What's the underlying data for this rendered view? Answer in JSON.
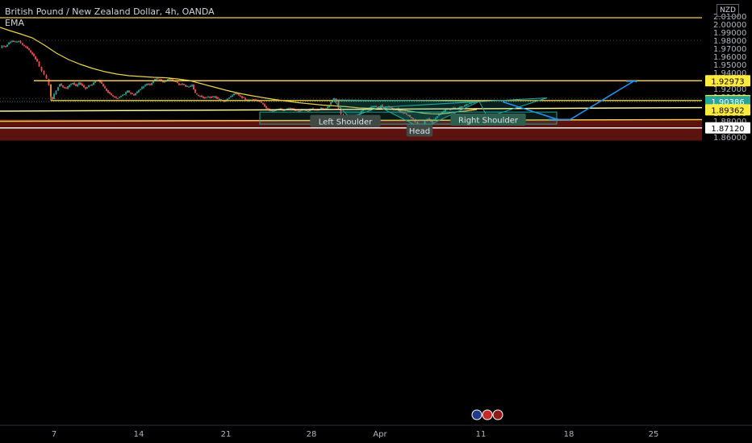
{
  "header": {
    "title": "British Pound / New Zealand Dollar, 4h, OANDA",
    "indicator": "EMA",
    "currency": "NZD"
  },
  "colors": {
    "background": "#000000",
    "candle_up": "#26a69a",
    "candle_down": "#ef5350",
    "ema": "#e8d44d",
    "level_line": "#f2c94c",
    "support_line": "#fff59d",
    "projection_arrow": "#2196f3",
    "pattern_fill": "#26a69a",
    "support_zone": "#6b1612",
    "axis_text": "#b2b5be",
    "price_label_yellow": "#ffeb3b",
    "price_label_green": "#26a69a",
    "price_label_white": "#ffffff"
  },
  "chart_data": {
    "type": "candlestick",
    "symbol": "GBP/NZD",
    "interval": "4h",
    "x_ticks": [
      "7",
      "14",
      "21",
      "28",
      "Apr",
      "11",
      "18",
      "25"
    ],
    "y_ticks": [
      "2.01000",
      "2.00000",
      "1.99000",
      "1.98000",
      "1.97000",
      "1.96000",
      "1.95000",
      "1.94000",
      "1.93000",
      "1.92000",
      "1.91000",
      "1.90000",
      "1.89000",
      "1.88000",
      "1.87000",
      "1.86000"
    ],
    "ylim": [
      1.8555,
      2.0135
    ],
    "grid": false,
    "price_path": [
      [
        1,
        1.9705
      ],
      [
        4,
        1.9735
      ],
      [
        8,
        1.972
      ],
      [
        12,
        1.9775
      ],
      [
        16,
        1.979
      ],
      [
        20,
        1.978
      ],
      [
        24,
        1.9795
      ],
      [
        27,
        1.976
      ],
      [
        31,
        1.973
      ],
      [
        35,
        1.97
      ],
      [
        39,
        1.965
      ],
      [
        43,
        1.96
      ],
      [
        47,
        1.954
      ],
      [
        50,
        1.947
      ],
      [
        53,
        1.942
      ],
      [
        56,
        1.937
      ],
      [
        59,
        1.932
      ],
      [
        62,
        1.925
      ],
      [
        64,
        1.91
      ],
      [
        66,
        1.907
      ],
      [
        68,
        1.913
      ],
      [
        71,
        1.918
      ],
      [
        75,
        1.926
      ],
      [
        79,
        1.922
      ],
      [
        83,
        1.92
      ],
      [
        87,
        1.925
      ],
      [
        91,
        1.927
      ],
      [
        95,
        1.923
      ],
      [
        99,
        1.927
      ],
      [
        103,
        1.924
      ],
      [
        107,
        1.92
      ],
      [
        111,
        1.924
      ],
      [
        115,
        1.925
      ],
      [
        119,
        1.929
      ],
      [
        123,
        1.931
      ],
      [
        127,
        1.926
      ],
      [
        131,
        1.92
      ],
      [
        135,
        1.915
      ],
      [
        139,
        1.912
      ],
      [
        143,
        1.909
      ],
      [
        147,
        1.908
      ],
      [
        151,
        1.911
      ],
      [
        155,
        1.913
      ],
      [
        159,
        1.917
      ],
      [
        163,
        1.914
      ],
      [
        167,
        1.912
      ],
      [
        171,
        1.916
      ],
      [
        175,
        1.92
      ],
      [
        179,
        1.923
      ],
      [
        183,
        1.926
      ],
      [
        187,
        1.925
      ],
      [
        191,
        1.93
      ],
      [
        195,
        1.933
      ],
      [
        199,
        1.931
      ],
      [
        203,
        1.928
      ],
      [
        207,
        1.93
      ],
      [
        211,
        1.933
      ],
      [
        215,
        1.93
      ],
      [
        219,
        1.928
      ],
      [
        223,
        1.925
      ],
      [
        227,
        1.926
      ],
      [
        231,
        1.923
      ],
      [
        235,
        1.922
      ],
      [
        239,
        1.925
      ],
      [
        243,
        1.914
      ],
      [
        247,
        1.911
      ],
      [
        251,
        1.91
      ],
      [
        255,
        1.908
      ],
      [
        259,
        1.91
      ],
      [
        263,
        1.909
      ],
      [
        267,
        1.91
      ],
      [
        271,
        1.907
      ],
      [
        275,
        1.906
      ],
      [
        279,
        1.904
      ],
      [
        283,
        1.908
      ],
      [
        287,
        1.91
      ],
      [
        291,
        1.914
      ],
      [
        295,
        1.913
      ],
      [
        299,
        1.91
      ],
      [
        303,
        1.908
      ],
      [
        307,
        1.905
      ],
      [
        311,
        1.906
      ],
      [
        315,
        1.907
      ],
      [
        319,
        1.905
      ],
      [
        323,
        1.904
      ],
      [
        327,
        1.9
      ],
      [
        331,
        1.896
      ],
      [
        335,
        1.893
      ],
      [
        339,
        1.892
      ],
      [
        343,
        1.894
      ],
      [
        347,
        1.895
      ],
      [
        351,
        1.893
      ],
      [
        355,
        1.894
      ],
      [
        359,
        1.896
      ],
      [
        363,
        1.895
      ],
      [
        367,
        1.893
      ],
      [
        371,
        1.892
      ],
      [
        375,
        1.894
      ],
      [
        379,
        1.893
      ],
      [
        383,
        1.892
      ],
      [
        387,
        1.895
      ],
      [
        391,
        1.894
      ],
      [
        395,
        1.893
      ],
      [
        399,
        1.896
      ],
      [
        403,
        1.894
      ],
      [
        407,
        1.897
      ],
      [
        411,
        1.903
      ],
      [
        415,
        1.908
      ],
      [
        418,
        1.905
      ],
      [
        421,
        1.895
      ],
      [
        424,
        1.888
      ],
      [
        427,
        1.885
      ],
      [
        430,
        1.883
      ],
      [
        433,
        1.882
      ],
      [
        436,
        1.884
      ],
      [
        439,
        1.883
      ],
      [
        442,
        1.885
      ],
      [
        445,
        1.886
      ],
      [
        449,
        1.892
      ],
      [
        453,
        1.896
      ],
      [
        457,
        1.894
      ],
      [
        461,
        1.897
      ],
      [
        465,
        1.898
      ],
      [
        469,
        1.896
      ],
      [
        473,
        1.899
      ],
      [
        477,
        1.895
      ],
      [
        481,
        1.898
      ],
      [
        485,
        1.896
      ],
      [
        489,
        1.894
      ],
      [
        493,
        1.895
      ],
      [
        497,
        1.891
      ],
      [
        501,
        1.89
      ],
      [
        505,
        1.888
      ],
      [
        509,
        1.885
      ],
      [
        513,
        1.882
      ],
      [
        516,
        1.878
      ],
      [
        519,
        1.873
      ],
      [
        522,
        1.872
      ],
      [
        525,
        1.875
      ],
      [
        528,
        1.88
      ],
      [
        531,
        1.883
      ],
      [
        535,
        1.879
      ],
      [
        539,
        1.882
      ],
      [
        543,
        1.886
      ],
      [
        547,
        1.889
      ],
      [
        551,
        1.892
      ],
      [
        555,
        1.895
      ],
      [
        559,
        1.894
      ],
      [
        563,
        1.896
      ],
      [
        567,
        1.895
      ],
      [
        571,
        1.897
      ],
      [
        575,
        1.898
      ],
      [
        579,
        1.9
      ],
      [
        583,
        1.902
      ],
      [
        587,
        1.903
      ],
      [
        591,
        1.9039
      ]
    ],
    "ema_path": [
      [
        0,
        1.996
      ],
      [
        12,
        1.992
      ],
      [
        25,
        1.988
      ],
      [
        40,
        1.983
      ],
      [
        55,
        1.974
      ],
      [
        70,
        1.964
      ],
      [
        85,
        1.956
      ],
      [
        100,
        1.95
      ],
      [
        115,
        1.945
      ],
      [
        130,
        1.941
      ],
      [
        145,
        1.938
      ],
      [
        160,
        1.936
      ],
      [
        175,
        1.935
      ],
      [
        190,
        1.934
      ],
      [
        205,
        1.9335
      ],
      [
        220,
        1.932
      ],
      [
        235,
        1.93
      ],
      [
        250,
        1.926
      ],
      [
        265,
        1.922
      ],
      [
        280,
        1.918
      ],
      [
        295,
        1.9145
      ],
      [
        310,
        1.9115
      ],
      [
        325,
        1.909
      ],
      [
        340,
        1.9065
      ],
      [
        355,
        1.9045
      ],
      [
        370,
        1.9025
      ],
      [
        385,
        1.901
      ],
      [
        400,
        1.8995
      ],
      [
        415,
        1.8985
      ],
      [
        430,
        1.8975
      ],
      [
        445,
        1.896
      ],
      [
        460,
        1.8955
      ],
      [
        475,
        1.895
      ],
      [
        490,
        1.894
      ],
      [
        505,
        1.8925
      ],
      [
        515,
        1.891
      ],
      [
        525,
        1.8895
      ],
      [
        535,
        1.8887
      ],
      [
        545,
        1.8885
      ],
      [
        555,
        1.8895
      ],
      [
        565,
        1.891
      ],
      [
        580,
        1.8925
      ],
      [
        591,
        1.894
      ]
    ],
    "levels": [
      {
        "price": 2.008,
        "role": "resistance"
      },
      {
        "price": 1.92973,
        "role": "target"
      },
      {
        "price": 1.90517,
        "role": "neckline"
      }
    ],
    "price_labels": [
      {
        "price": 1.92973,
        "text": "1.92973",
        "kind": "yellow"
      },
      {
        "price": 1.90517,
        "text": "1.90517",
        "kind": "yellow"
      },
      {
        "price": 1.90386,
        "text": "1.90386",
        "kind": "green"
      },
      {
        "price": 1.89362,
        "text": "1.89362",
        "kind": "yellow"
      },
      {
        "price": 1.8712,
        "text": "1.87120",
        "kind": "white"
      }
    ],
    "annotations": [
      {
        "text": "Left Shoulder",
        "x": 428,
        "price": 1.8792
      },
      {
        "text": "Head",
        "x": 520,
        "price": 1.8675
      },
      {
        "text": "Right Shoulder",
        "x": 605,
        "price": 1.881
      }
    ]
  }
}
